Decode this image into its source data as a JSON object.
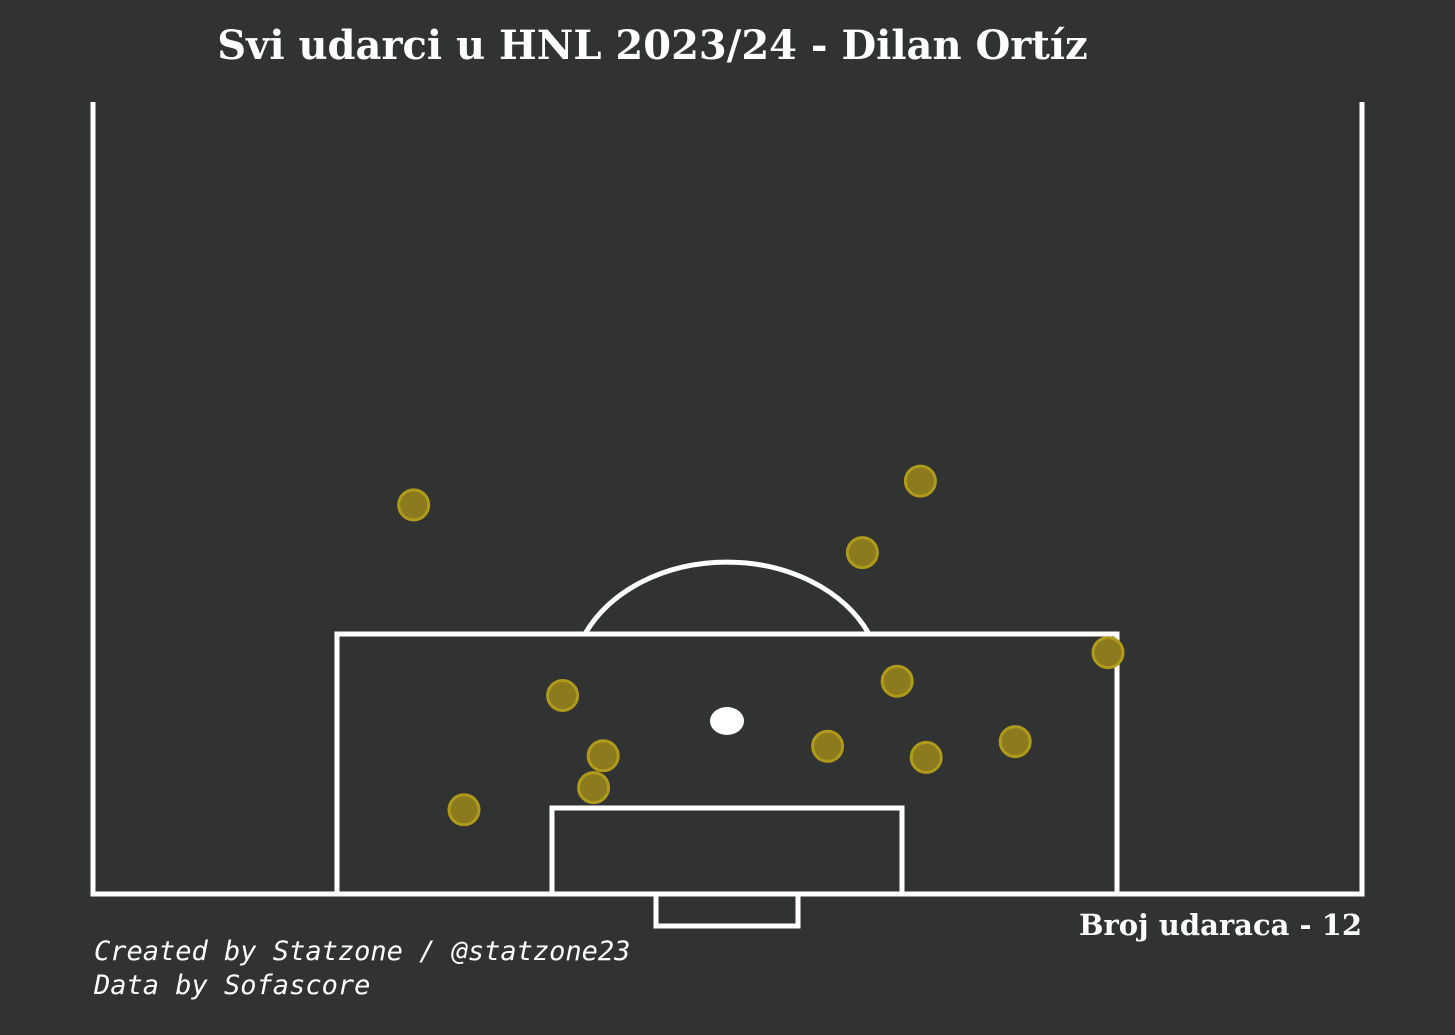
{
  "chart_data": {
    "type": "scatter",
    "title": "Svi udarci u HNL 2023/24 - Dilan Ortíz",
    "pitch": "half-pitch shot map",
    "units": "metres from goal line (x) and from pitch centre line (y)",
    "marker_color": "#8B7A1E",
    "marker_edge_color": "#B09A1A",
    "line_color": "#ffffff",
    "background": "#313332",
    "points": [
      {
        "x": 26.0,
        "y": 10.0
      },
      {
        "x": 21.5,
        "y": 7.0
      },
      {
        "x": 24.5,
        "y": -16.2
      },
      {
        "x": 15.2,
        "y": 19.7
      },
      {
        "x": 13.4,
        "y": 8.8
      },
      {
        "x": 12.5,
        "y": -8.5
      },
      {
        "x": 9.6,
        "y": 14.9
      },
      {
        "x": 9.3,
        "y": 5.2
      },
      {
        "x": 8.7,
        "y": -6.4
      },
      {
        "x": 8.6,
        "y": 10.3
      },
      {
        "x": 6.7,
        "y": -6.9
      },
      {
        "x": 5.3,
        "y": -13.6
      }
    ]
  },
  "annotations": {
    "shot_count": "Broj udaraca - 12",
    "credit_line_1": "Created by Statzone / @statzone23",
    "credit_line_2": "Data by Sofascore"
  }
}
